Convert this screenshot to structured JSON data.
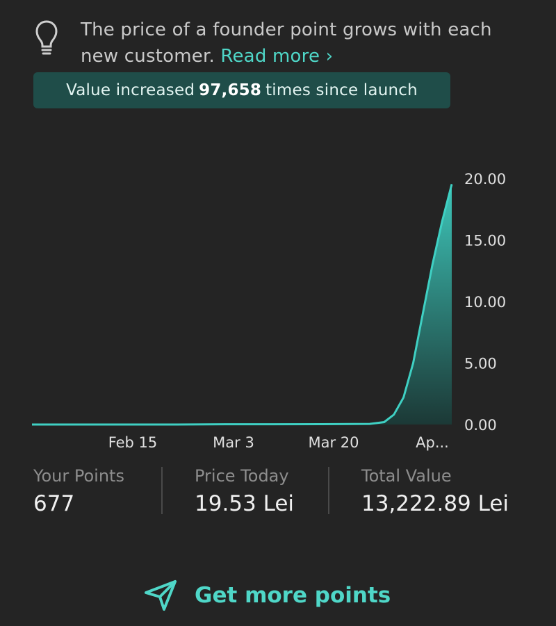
{
  "info": {
    "text": "The price of a founder point grows with each new customer.",
    "read_more": "Read more ›",
    "icon": "lightbulb-icon"
  },
  "banner": {
    "prefix": "Value increased",
    "value": "97,658",
    "suffix": "times since launch"
  },
  "chart_data": {
    "type": "area",
    "x_tick_labels": [
      "Feb 15",
      "Mar 3",
      "Mar 20",
      "Ap..."
    ],
    "y_tick_labels": [
      "20.00",
      "15.00",
      "10.00",
      "5.00",
      "0.00"
    ],
    "ylim": [
      0,
      20
    ],
    "grid": false,
    "points": [
      {
        "t": 0,
        "y": 0.0
      },
      {
        "t": 10,
        "y": 0.0
      },
      {
        "t": 20,
        "y": 0.0
      },
      {
        "t": 30,
        "y": 0.0
      },
      {
        "t": 40,
        "y": 0.02
      },
      {
        "t": 50,
        "y": 0.02
      },
      {
        "t": 60,
        "y": 0.03
      },
      {
        "t": 70,
        "y": 0.05
      },
      {
        "t": 73,
        "y": 0.2
      },
      {
        "t": 75,
        "y": 0.8
      },
      {
        "t": 77,
        "y": 2.2
      },
      {
        "t": 79,
        "y": 5.0
      },
      {
        "t": 81,
        "y": 9.0
      },
      {
        "t": 83,
        "y": 13.0
      },
      {
        "t": 85,
        "y": 16.5
      },
      {
        "t": 87,
        "y": 19.53
      }
    ],
    "x_ticks_t": [
      23,
      39,
      55,
      71
    ],
    "color": "#3fd0c3"
  },
  "stats": {
    "your_points": {
      "label": "Your Points",
      "value": "677"
    },
    "price_today": {
      "label": "Price Today",
      "value": "19.53 Lei"
    },
    "total_value": {
      "label": "Total Value",
      "value": "13,222.89 Lei"
    }
  },
  "cta": {
    "label": "Get more points",
    "icon": "send-icon"
  }
}
